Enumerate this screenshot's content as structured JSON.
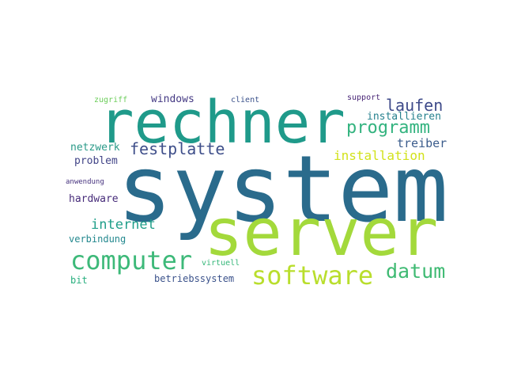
{
  "words": [
    {
      "text": "system",
      "color": "#2a6b8c"
    },
    {
      "text": "server",
      "color": "#a3d93b"
    },
    {
      "text": "rechner",
      "color": "#1f9a8a"
    },
    {
      "text": "computer",
      "color": "#3db979"
    },
    {
      "text": "software",
      "color": "#b9de2d"
    },
    {
      "text": "datum",
      "color": "#3fba73"
    },
    {
      "text": "programm",
      "color": "#33b37f"
    },
    {
      "text": "festplatte",
      "color": "#3f4f8a"
    },
    {
      "text": "laufen",
      "color": "#3e4a89"
    },
    {
      "text": "internet",
      "color": "#1f9e89"
    },
    {
      "text": "installation",
      "color": "#d2e21b"
    },
    {
      "text": "treiber",
      "color": "#3b5c8c"
    },
    {
      "text": "windows",
      "color": "#443983"
    },
    {
      "text": "installieren",
      "color": "#26818e"
    },
    {
      "text": "netzwerk",
      "color": "#2a9a88"
    },
    {
      "text": "problem",
      "color": "#414487"
    },
    {
      "text": "hardware",
      "color": "#472c7a"
    },
    {
      "text": "verbindung",
      "color": "#23888e"
    },
    {
      "text": "betriebssystem",
      "color": "#3b528b"
    },
    {
      "text": "bit",
      "color": "#29af7f"
    },
    {
      "text": "zugriff",
      "color": "#6ccd5a"
    },
    {
      "text": "client",
      "color": "#3b528b"
    },
    {
      "text": "support",
      "color": "#482576"
    },
    {
      "text": "anwendung",
      "color": "#46327e"
    },
    {
      "text": "virtuell",
      "color": "#35b779"
    }
  ]
}
